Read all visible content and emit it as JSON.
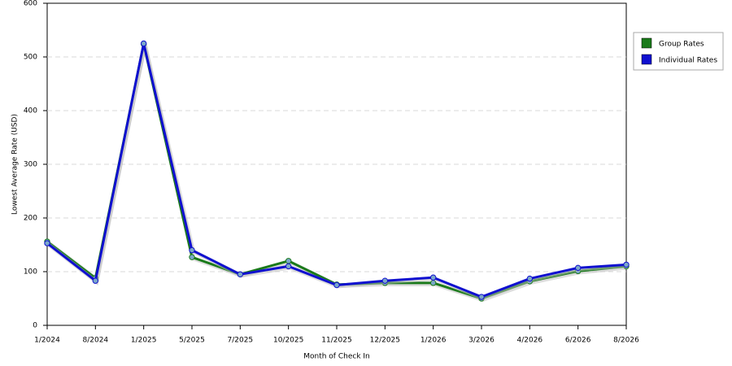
{
  "chart_data": {
    "type": "line",
    "xlabel": "Month of Check In",
    "ylabel": "Lowest Average Rate (USD)",
    "categories": [
      "1/2024",
      "8/2024",
      "1/2025",
      "5/2025",
      "7/2025",
      "10/2025",
      "11/2025",
      "12/2025",
      "1/2026",
      "3/2026",
      "4/2026",
      "6/2026",
      "8/2026"
    ],
    "series": [
      {
        "name": "Group Rates",
        "color": "#1a7a1a",
        "values": [
          156,
          88,
          524,
          127,
          95,
          120,
          76,
          79,
          79,
          50,
          82,
          101,
          110
        ]
      },
      {
        "name": "Individual Rates",
        "color": "#1010d0",
        "values": [
          153,
          83,
          525,
          140,
          95,
          110,
          75,
          83,
          89,
          53,
          87,
          107,
          113
        ]
      }
    ],
    "ylim": [
      0,
      600
    ],
    "yticks": [
      0,
      100,
      200,
      300,
      400,
      500,
      600
    ],
    "grid": true,
    "legend": "right"
  }
}
